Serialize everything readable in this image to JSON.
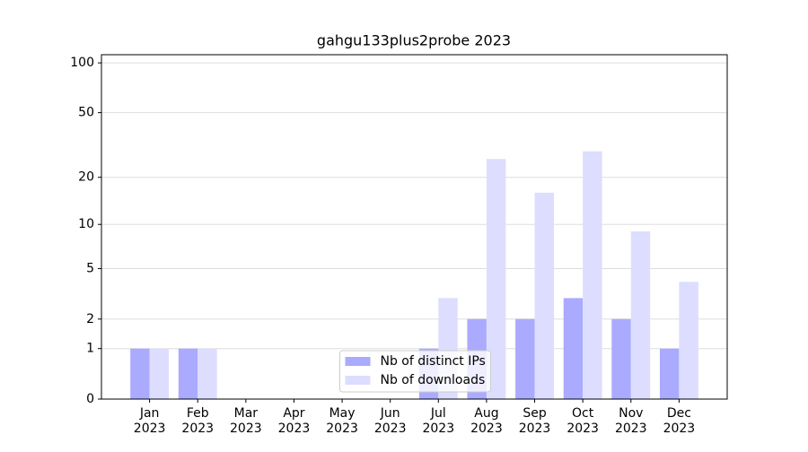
{
  "chart_data": {
    "type": "bar",
    "title": "gahgu133plus2probe 2023",
    "categories": [
      [
        "Jan",
        "2023"
      ],
      [
        "Feb",
        "2023"
      ],
      [
        "Mar",
        "2023"
      ],
      [
        "Apr",
        "2023"
      ],
      [
        "May",
        "2023"
      ],
      [
        "Jun",
        "2023"
      ],
      [
        "Jul",
        "2023"
      ],
      [
        "Aug",
        "2023"
      ],
      [
        "Sep",
        "2023"
      ],
      [
        "Oct",
        "2023"
      ],
      [
        "Nov",
        "2023"
      ],
      [
        "Dec",
        "2023"
      ]
    ],
    "series": [
      {
        "name": "Nb of distinct IPs",
        "color": "#aaaaff",
        "values": [
          1,
          1,
          0,
          0,
          0,
          0,
          1,
          2,
          2,
          3,
          2,
          1
        ]
      },
      {
        "name": "Nb of downloads",
        "color": "#ddddff",
        "values": [
          1,
          1,
          0,
          0,
          0,
          0,
          3,
          26,
          16,
          29,
          9,
          4
        ]
      }
    ],
    "yscale": "log1p",
    "ylim": [
      0,
      112
    ],
    "yticks": [
      0,
      1,
      2,
      5,
      10,
      20,
      50,
      100
    ],
    "grid": true,
    "legend": "lower center"
  }
}
